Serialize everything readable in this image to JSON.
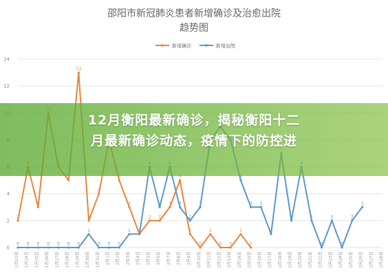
{
  "chart_data": {
    "type": "line",
    "title_lines": [
      "邵阳市新冠肺炎患者新增确诊及治愈出院",
      "趋势图"
    ],
    "ylim": [
      0,
      14
    ],
    "yticks": [
      0,
      2,
      4,
      6,
      8,
      10,
      12,
      14
    ],
    "grid": true,
    "legend_position": "top-center",
    "categories": [
      "1月23日",
      "1月24日",
      "1月25日",
      "1月26日",
      "1月27日",
      "1月28日",
      "1月29日",
      "1月30日",
      "1月31日",
      "2月1日",
      "2月2日",
      "2月3日",
      "2月4日",
      "2月5日",
      "2月6日",
      "2月7日",
      "2月8日",
      "2月9日",
      "2月10日",
      "2月11日",
      "2月12日",
      "2月13日",
      "2月14日",
      "2月15日",
      "2月16日",
      "2月17日",
      "2月18日",
      "2月19日",
      "2月20日",
      "2月21日",
      "2月22日",
      "2月23日",
      "2月24日",
      "2月25日",
      "2月26日",
      "2月27日",
      "2月28日"
    ],
    "series": [
      {
        "name": "新增确诊",
        "color": "#e8843c",
        "values": [
          2,
          6,
          3,
          10,
          6,
          5,
          13,
          2,
          4,
          8,
          5,
          3,
          1,
          2,
          2,
          3,
          5,
          1,
          0,
          1,
          0,
          0,
          1,
          0,
          null,
          null,
          null,
          null,
          null,
          null,
          null,
          null,
          null,
          null,
          null,
          null,
          null
        ],
        "labels": [
          2,
          6,
          3,
          10,
          6,
          5,
          13,
          2,
          4,
          8,
          5,
          3,
          1,
          2,
          2,
          3,
          5,
          1,
          0,
          1,
          0,
          0,
          1,
          0,
          null,
          null,
          null,
          null,
          null,
          null,
          null,
          null,
          null,
          null,
          null,
          null,
          null
        ]
      },
      {
        "name": "新增出院",
        "color": "#5b97c7",
        "values": [
          0,
          0,
          0,
          0,
          0,
          0,
          0,
          1,
          0,
          0,
          0,
          1,
          1,
          6,
          3,
          6,
          3,
          2,
          3,
          8,
          9,
          8,
          5,
          3,
          3,
          1,
          7,
          2,
          6,
          2,
          0,
          2,
          0,
          2,
          3,
          null,
          null
        ],
        "labels": [
          0,
          0,
          0,
          0,
          0,
          0,
          0,
          1,
          0,
          0,
          0,
          1,
          1,
          6,
          3,
          6,
          3,
          2,
          3,
          8,
          9,
          8,
          5,
          3,
          3,
          1,
          7,
          2,
          6,
          2,
          0,
          2,
          0,
          2,
          3,
          null,
          null
        ]
      }
    ]
  },
  "overlay": {
    "headline_lines": [
      "12月衡阳最新确诊，揭秘衡阳十二",
      "月最新确诊动态，疫情下的防控进"
    ]
  }
}
